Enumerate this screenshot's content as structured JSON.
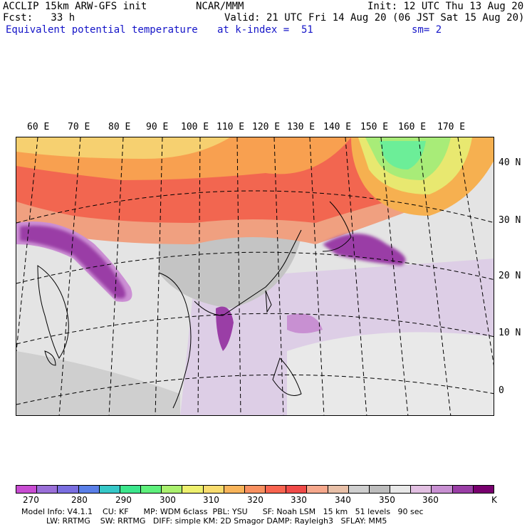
{
  "header": {
    "model": "ACCLIP 15km ARW-GFS init",
    "org": "NCAR/MMM",
    "init": "Init: 12 UTC Thu 13 Aug 20",
    "fcst": "Fcst:   33 h",
    "valid": "Valid: 21 UTC Fri 14 Aug 20 (06 JST Sat 15 Aug 20)",
    "field": "Equivalent potential temperature",
    "level": "at k-index =  51",
    "smooth": "sm= 2"
  },
  "lon_labels": [
    "60 E",
    "70 E",
    "80 E",
    "90 E",
    "100 E",
    "110 E",
    "120 E",
    "130 E",
    "140 E",
    "150 E",
    "160 E",
    "170 E"
  ],
  "lat_labels": [
    "40 N",
    "30 N",
    "20 N",
    "10 N",
    "0"
  ],
  "colorbar": {
    "colors": [
      "#c84cd2",
      "#9a6fd8",
      "#7a6ee0",
      "#5a7fe8",
      "#36c8c8",
      "#3ce68c",
      "#5ef07c",
      "#aaf06e",
      "#eef06e",
      "#f8dc6e",
      "#f8b45a",
      "#f89060",
      "#f86450",
      "#f04a48",
      "#f6a88c",
      "#e8c0a8",
      "#cfcfcf",
      "#bdbdbd",
      "#e8e8e8",
      "#e2c0e2",
      "#c890d2",
      "#9a3ea6",
      "#78006e"
    ],
    "labels": [
      "270",
      "280",
      "290",
      "300",
      "310",
      "320",
      "330",
      "340",
      "350",
      "360",
      "K"
    ]
  },
  "footer": {
    "line1": "Model Info: V4.1.1    CU: KF      MP: WDM 6class  PBL: YSU      SF: Noah LSM   15 km   51 levels   90 sec",
    "line2": "          LW: RRTMG    SW: RRTMG   DIFF: simple KM: 2D Smagor DAMP: Rayleigh3   SFLAY: MM5"
  }
}
